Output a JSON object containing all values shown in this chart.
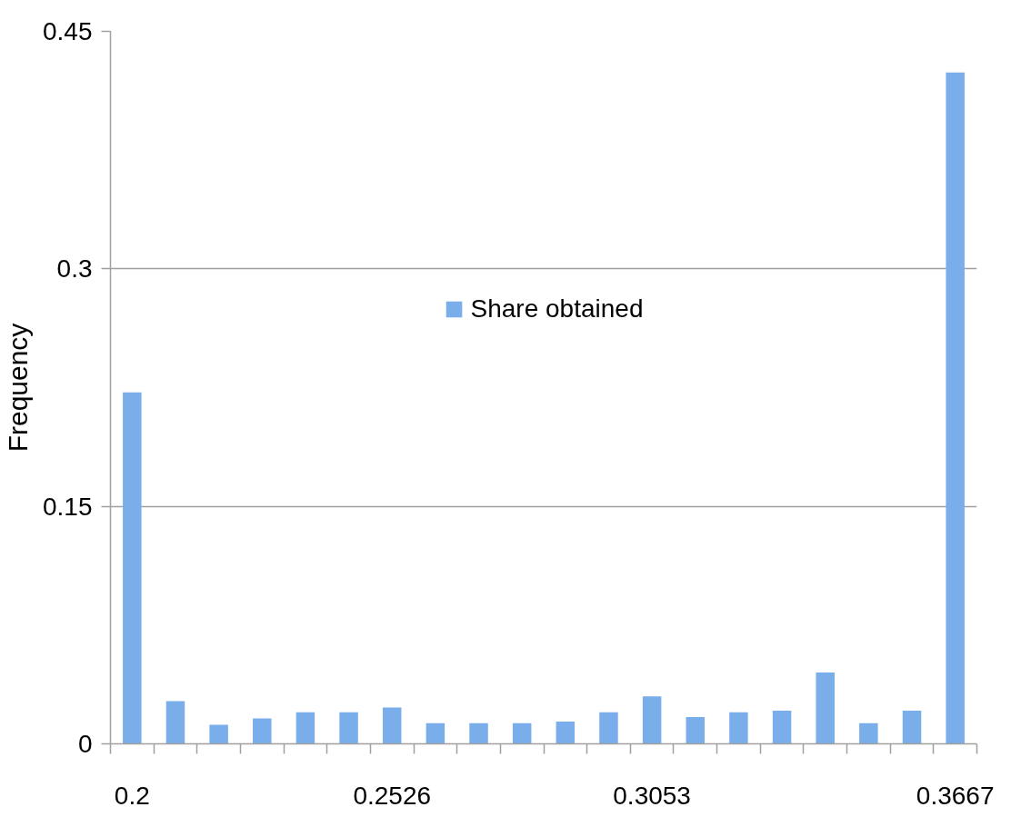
{
  "chart_data": {
    "type": "bar",
    "ylabel": "Frequency",
    "categories": [
      "0.2",
      null,
      null,
      null,
      null,
      null,
      "0.2526",
      null,
      null,
      null,
      null,
      null,
      "0.3053",
      null,
      null,
      null,
      null,
      null,
      null,
      "0.3667"
    ],
    "series": [
      {
        "name": "Share obtained",
        "color": "#7aaeea",
        "values": [
          0.222,
          0.027,
          0.012,
          0.016,
          0.02,
          0.02,
          0.023,
          0.013,
          0.013,
          0.013,
          0.014,
          0.02,
          0.03,
          0.017,
          0.02,
          0.021,
          0.045,
          0.013,
          0.021,
          0.424
        ]
      }
    ],
    "ylim": [
      0,
      0.45
    ],
    "yticks": [
      0,
      0.15,
      0.3,
      0.45
    ],
    "grid": "y",
    "legend": "top"
  }
}
